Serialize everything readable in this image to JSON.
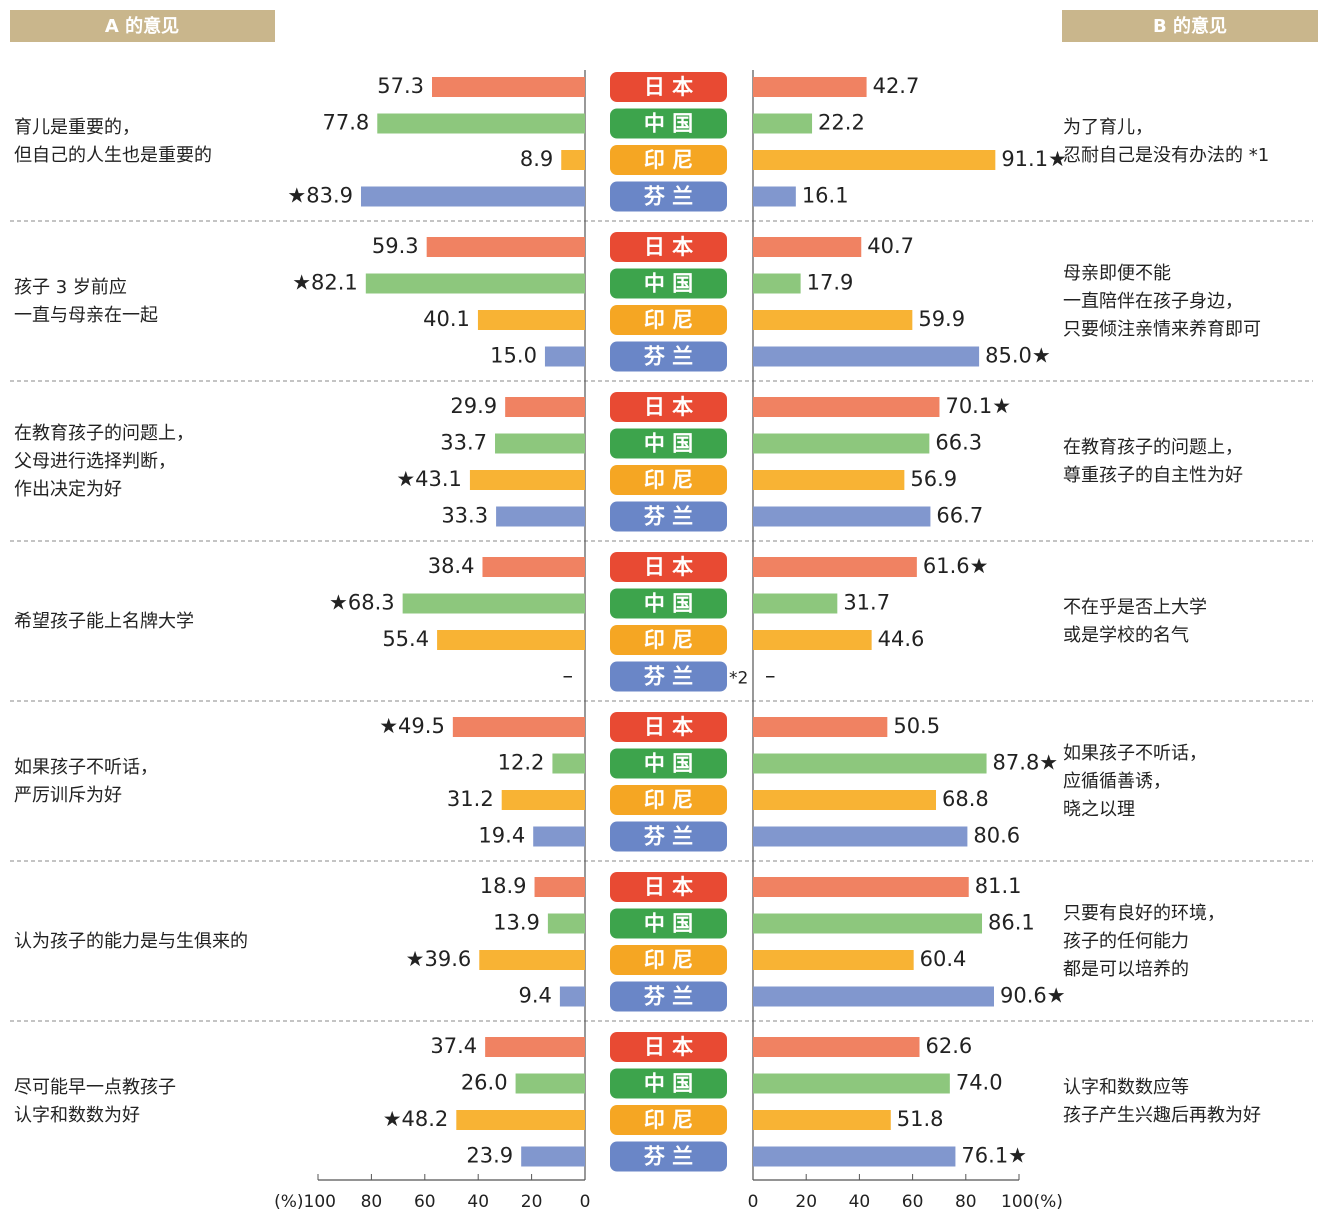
{
  "chart_data": {
    "type": "butterfly",
    "left_header": "A 的意见",
    "right_header": "B 的意见",
    "xlim": [
      0,
      100
    ],
    "left_xticks": [
      {
        "value": 100,
        "label": "(%)100"
      },
      80,
      60,
      40,
      20,
      0
    ],
    "right_xticks": [
      0,
      20,
      40,
      60,
      80,
      {
        "value": 100,
        "label": "100(%)"
      }
    ],
    "countries": [
      {
        "name": "日 本",
        "color": "#f08262",
        "badge_color": "#e84a33"
      },
      {
        "name": "中 国",
        "color": "#8dc77d",
        "badge_color": "#3da44c"
      },
      {
        "name": "印 尼",
        "color": "#f8b334",
        "badge_color": "#f5a623"
      },
      {
        "name": "芬 兰",
        "color": "#8197ce",
        "badge_color": "#6a86c7"
      }
    ],
    "groups": [
      {
        "label_a": [
          "育儿是重要的，",
          "但自己的人生也是重要的"
        ],
        "label_b": [
          "为了育儿，",
          "忍耐自己是没有办法的 *1"
        ],
        "a": {
          "values": [
            57.3,
            77.8,
            8.9,
            83.9
          ],
          "value_labels": [
            "57.3",
            "77.8",
            "8.9",
            "★83.9"
          ]
        },
        "b": {
          "values": [
            42.7,
            22.2,
            91.1,
            16.1
          ],
          "value_labels": [
            "42.7",
            "22.2",
            "91.1★",
            "16.1"
          ]
        }
      },
      {
        "label_a": [
          "孩子 3 岁前应",
          "一直与母亲在一起"
        ],
        "label_b": [
          "母亲即便不能",
          "一直陪伴在孩子身边，",
          "只要倾注亲情来养育即可"
        ],
        "a": {
          "values": [
            59.3,
            82.1,
            40.1,
            15.0
          ],
          "value_labels": [
            "59.3",
            "★82.1",
            "40.1",
            "15.0"
          ]
        },
        "b": {
          "values": [
            40.7,
            17.9,
            59.9,
            85.0
          ],
          "value_labels": [
            "40.7",
            "17.9",
            "59.9",
            "85.0★"
          ]
        }
      },
      {
        "label_a": [
          "在教育孩子的问题上，",
          "父母进行选择判断，",
          "作出决定为好"
        ],
        "label_b": [
          "在教育孩子的问题上，",
          "尊重孩子的自主性为好"
        ],
        "a": {
          "values": [
            29.9,
            33.7,
            43.1,
            33.3
          ],
          "value_labels": [
            "29.9",
            "33.7",
            "★43.1",
            "33.3"
          ]
        },
        "b": {
          "values": [
            70.1,
            66.3,
            56.9,
            66.7
          ],
          "value_labels": [
            "70.1★",
            "66.3",
            "56.9",
            "66.7"
          ]
        }
      },
      {
        "label_a": [
          "希望孩子能上名牌大学"
        ],
        "label_b": [
          "不在乎是否上大学",
          "或是学校的名气"
        ],
        "note": "*2",
        "a": {
          "values": [
            38.4,
            68.3,
            55.4,
            null
          ],
          "value_labels": [
            "38.4",
            "★68.3",
            "55.4",
            "–"
          ]
        },
        "b": {
          "values": [
            61.6,
            31.7,
            44.6,
            null
          ],
          "value_labels": [
            "61.6★",
            "31.7",
            "44.6",
            "–"
          ]
        }
      },
      {
        "label_a": [
          "如果孩子不听话，",
          "严厉训斥为好"
        ],
        "label_b": [
          "如果孩子不听话，",
          "应循循善诱，",
          "晓之以理"
        ],
        "a": {
          "values": [
            49.5,
            12.2,
            31.2,
            19.4
          ],
          "value_labels": [
            "★49.5",
            "12.2",
            "31.2",
            "19.4"
          ]
        },
        "b": {
          "values": [
            50.5,
            87.8,
            68.8,
            80.6
          ],
          "value_labels": [
            "50.5",
            "87.8★",
            "68.8",
            "80.6"
          ]
        }
      },
      {
        "label_a": [
          "认为孩子的能力是与生俱来的"
        ],
        "label_b": [
          "只要有良好的环境，",
          "孩子的任何能力",
          "都是可以培养的"
        ],
        "a": {
          "values": [
            18.9,
            13.9,
            39.6,
            9.4
          ],
          "value_labels": [
            "18.9",
            "13.9",
            "★39.6",
            "9.4"
          ]
        },
        "b": {
          "values": [
            81.1,
            86.1,
            60.4,
            90.6
          ],
          "value_labels": [
            "81.1",
            "86.1",
            "60.4",
            "90.6★"
          ]
        }
      },
      {
        "label_a": [
          "尽可能早一点教孩子",
          "认字和数数为好"
        ],
        "label_b": [
          "认字和数数应等",
          "孩子产生兴趣后再教为好"
        ],
        "a": {
          "values": [
            37.4,
            26.0,
            48.2,
            23.9
          ],
          "value_labels": [
            "37.4",
            "26.0",
            "★48.2",
            "23.9"
          ]
        },
        "b": {
          "values": [
            62.6,
            74.0,
            51.8,
            76.1
          ],
          "value_labels": [
            "62.6",
            "74.0",
            "51.8",
            "76.1★"
          ]
        }
      }
    ]
  }
}
